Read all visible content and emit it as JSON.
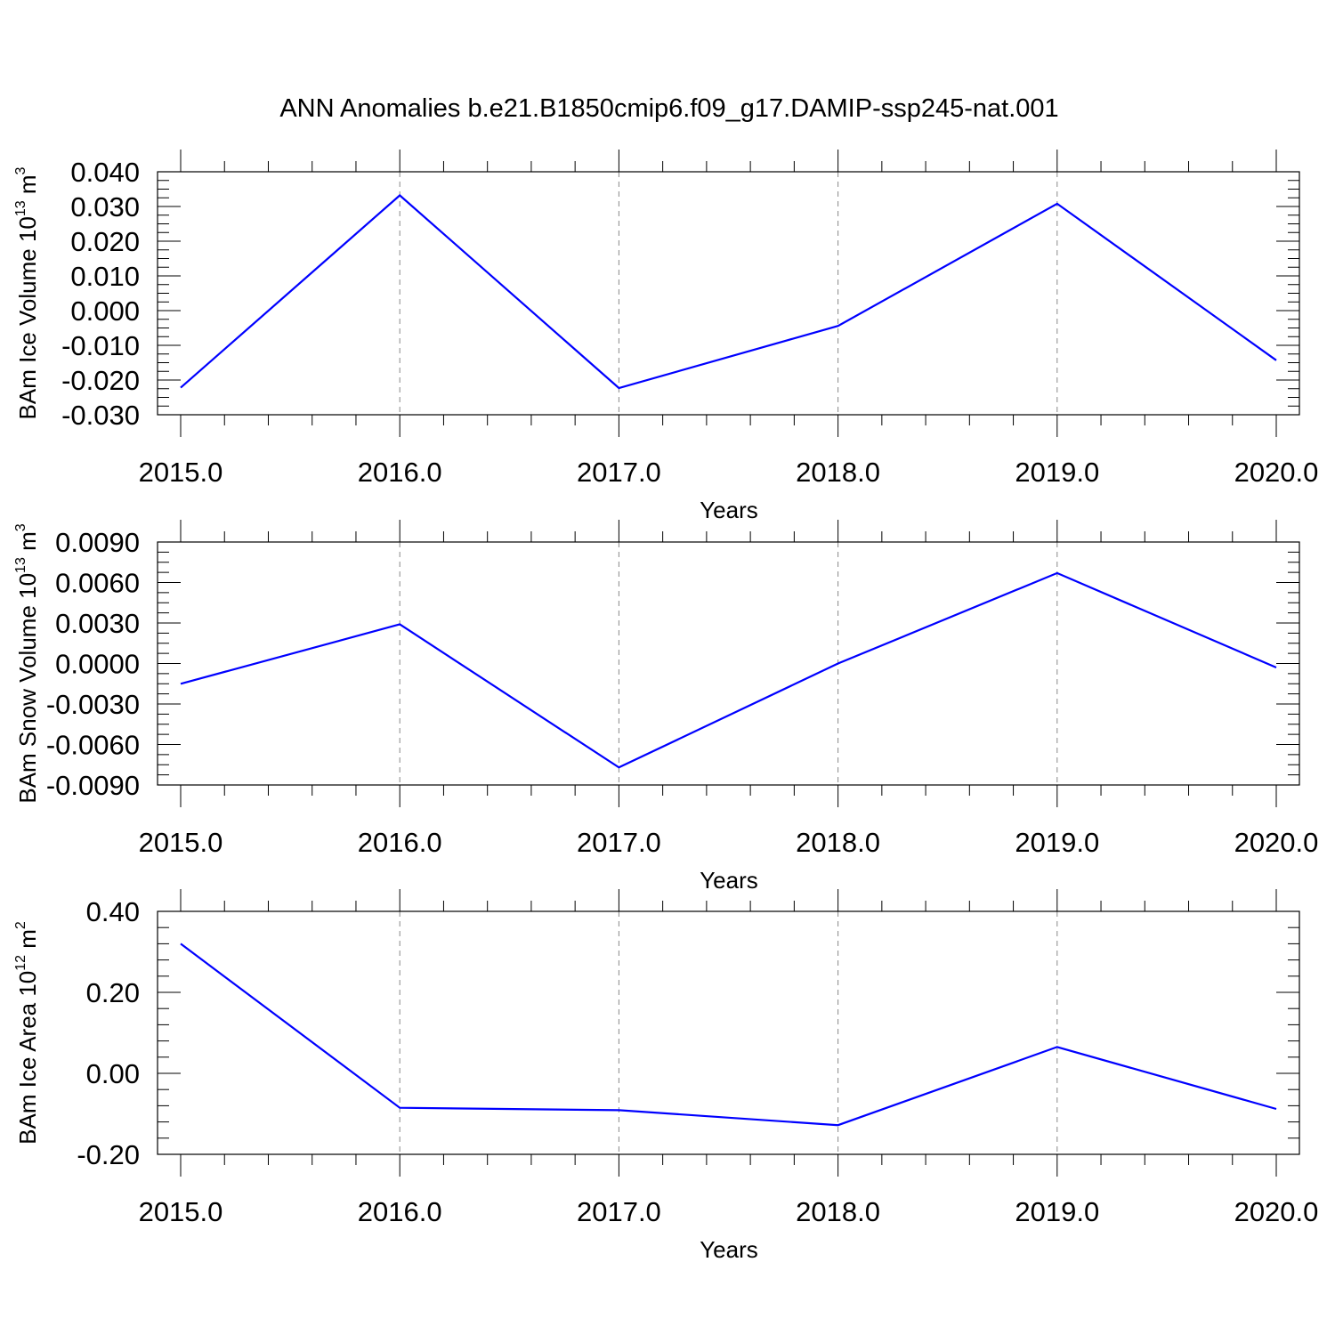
{
  "title": "ANN Anomalies b.e21.B1850cmip6.f09_g17.DAMIP-ssp245-nat.001",
  "colors": {
    "series": "#0000ff",
    "axes": "#000000",
    "grid": "#888888"
  },
  "chart_data": [
    {
      "type": "line",
      "ylabel_main": "BAm Ice Volume 10",
      "ylabel_exp": "13",
      "ylabel_unit": " m",
      "ylabel_unit_exp": "3",
      "xlabel": "Years",
      "x": [
        2015,
        2016,
        2017,
        2018,
        2019,
        2020
      ],
      "y": [
        -0.0222,
        0.0332,
        -0.0223,
        -0.0044,
        0.0308,
        -0.0143
      ],
      "xlim": [
        2015,
        2020
      ],
      "ylim": [
        -0.03,
        0.04
      ],
      "yticks": [
        -0.03,
        -0.02,
        -0.01,
        0.0,
        0.01,
        0.02,
        0.03,
        0.04
      ],
      "ytick_labels": [
        "-0.030",
        "-0.020",
        "-0.010",
        "0.000",
        "0.010",
        "0.020",
        "0.030",
        "0.040"
      ],
      "xticks": [
        2015,
        2016,
        2017,
        2018,
        2019,
        2020
      ],
      "xtick_labels": [
        "2015.0",
        "2016.0",
        "2017.0",
        "2018.0",
        "2019.0",
        "2020.0"
      ],
      "vertical_grid": "dashed at x ticks"
    },
    {
      "type": "line",
      "ylabel_main": "BAm Snow Volume 10",
      "ylabel_exp": "13",
      "ylabel_unit": " m",
      "ylabel_unit_exp": "3",
      "xlabel": "Years",
      "x": [
        2015,
        2016,
        2017,
        2018,
        2019,
        2020
      ],
      "y": [
        -0.0015,
        0.0029,
        -0.0077,
        0.0,
        0.0067,
        -0.0003
      ],
      "xlim": [
        2015,
        2020
      ],
      "ylim": [
        -0.009,
        0.009
      ],
      "yticks": [
        -0.009,
        -0.006,
        -0.003,
        0.0,
        0.003,
        0.006,
        0.009
      ],
      "ytick_labels": [
        "-0.0090",
        "-0.0060",
        "-0.0030",
        "0.0000",
        "0.0030",
        "0.0060",
        "0.0090"
      ],
      "xticks": [
        2015,
        2016,
        2017,
        2018,
        2019,
        2020
      ],
      "xtick_labels": [
        "2015.0",
        "2016.0",
        "2017.0",
        "2018.0",
        "2019.0",
        "2020.0"
      ],
      "vertical_grid": "dashed at x ticks"
    },
    {
      "type": "line",
      "ylabel_main": "BAm Ice Area 10",
      "ylabel_exp": "12",
      "ylabel_unit": " m",
      "ylabel_unit_exp": "2",
      "xlabel": "Years",
      "x": [
        2015,
        2016,
        2017,
        2018,
        2019,
        2020
      ],
      "y": [
        0.32,
        -0.085,
        -0.091,
        -0.128,
        0.065,
        -0.088
      ],
      "xlim": [
        2015,
        2020
      ],
      "ylim": [
        -0.2,
        0.4
      ],
      "yticks": [
        -0.2,
        0.0,
        0.2,
        0.4
      ],
      "ytick_labels": [
        "-0.20",
        "0.00",
        "0.20",
        "0.40"
      ],
      "xticks": [
        2015,
        2016,
        2017,
        2018,
        2019,
        2020
      ],
      "xtick_labels": [
        "2015.0",
        "2016.0",
        "2017.0",
        "2018.0",
        "2019.0",
        "2020.0"
      ],
      "vertical_grid": "dashed at x ticks"
    }
  ]
}
